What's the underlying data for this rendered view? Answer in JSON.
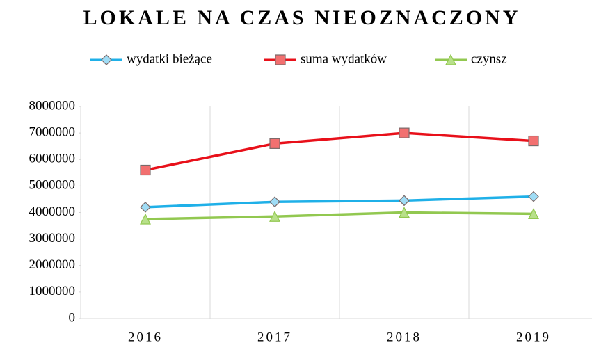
{
  "chart_data": {
    "type": "line",
    "title": "LOKALE NA CZAS NIEOZNACZONY",
    "categories": [
      "2016",
      "2017",
      "2018",
      "2019"
    ],
    "series": [
      {
        "name": "wydatki bieżące",
        "color": "#1fb0e8",
        "marker": "diamond",
        "values": [
          4200000,
          4400000,
          4450000,
          4600000
        ]
      },
      {
        "name": "suma wydatków",
        "color": "#e8101a",
        "marker": "square",
        "values": [
          5600000,
          6600000,
          7000000,
          6700000
        ]
      },
      {
        "name": "czynsz",
        "color": "#92c850",
        "marker": "triangle",
        "values": [
          3750000,
          3850000,
          4000000,
          3950000
        ]
      }
    ],
    "ylim": [
      0,
      8000000
    ],
    "yticks": [
      0,
      1000000,
      2000000,
      3000000,
      4000000,
      5000000,
      6000000,
      7000000,
      8000000
    ],
    "grid": "x",
    "legend": "top"
  }
}
